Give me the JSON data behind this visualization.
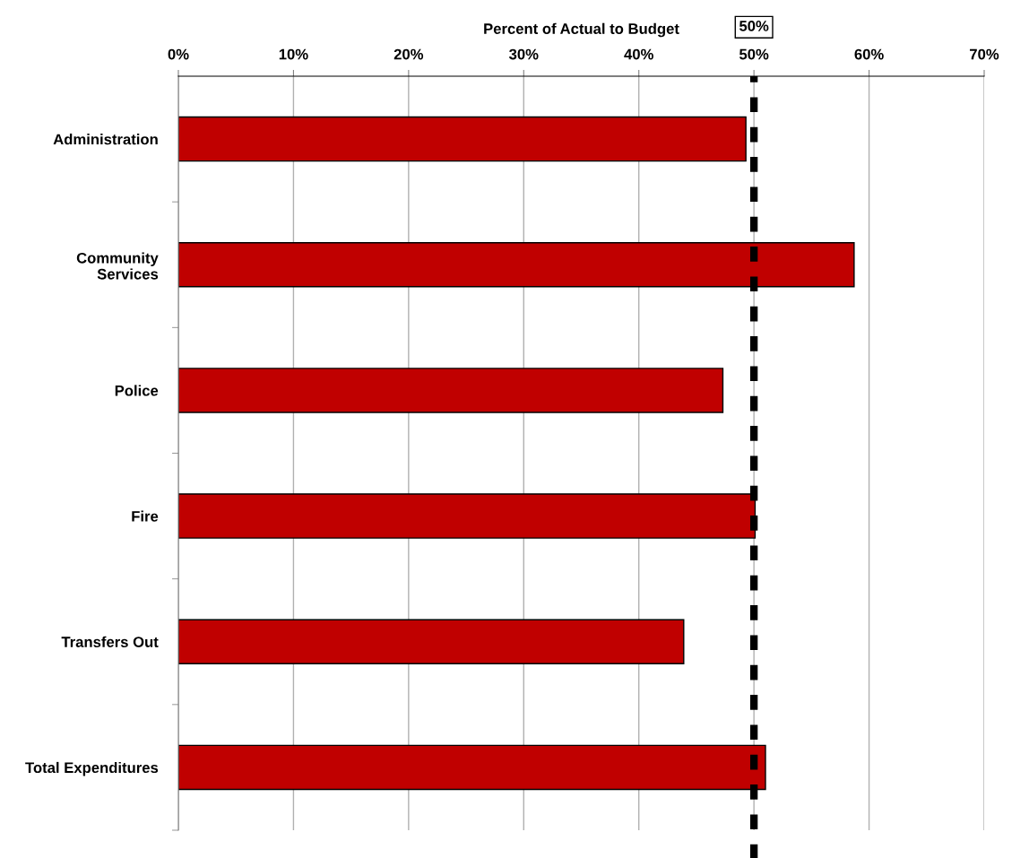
{
  "chart_data": {
    "type": "bar",
    "orientation": "horizontal",
    "title": "Percent of Actual to Budget",
    "categories": [
      "Administration",
      "Community\nServices",
      "Police",
      "Fire",
      "Transfers Out",
      "Total Expenditures"
    ],
    "values": [
      49.3,
      58.7,
      47.3,
      50.1,
      43.9,
      51.0
    ],
    "color": "#c00000",
    "xlim": [
      0,
      70
    ],
    "xticks": [
      {
        "value": 0,
        "label": "0%"
      },
      {
        "value": 10,
        "label": "10%"
      },
      {
        "value": 20,
        "label": "20%"
      },
      {
        "value": 30,
        "label": "30%"
      },
      {
        "value": 40,
        "label": "40%"
      },
      {
        "value": 50,
        "label": "50%"
      },
      {
        "value": 60,
        "label": "60%"
      },
      {
        "value": 70,
        "label": "70%"
      }
    ],
    "grid": "x",
    "ref_lines": [
      {
        "axis": "x",
        "value": 50,
        "label": "50%",
        "color": "#000000",
        "line_style": "dashed"
      }
    ]
  }
}
